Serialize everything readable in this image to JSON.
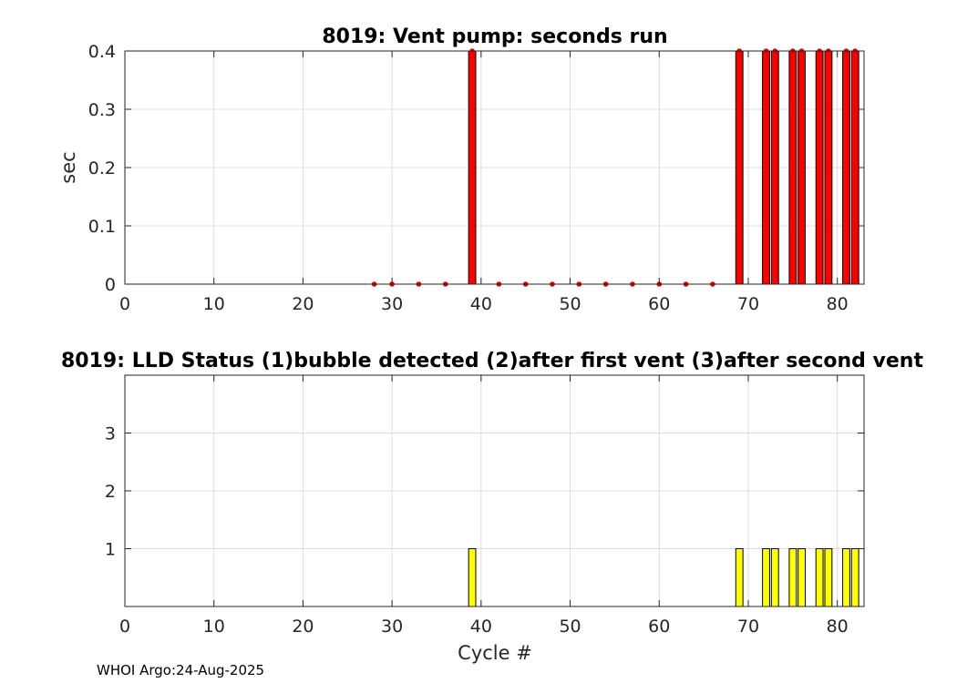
{
  "footer": "WHOI Argo:24-Aug-2025",
  "chart_data": [
    {
      "type": "bar",
      "title": "8019: Vent pump: seconds run",
      "xlabel": "",
      "ylabel": "sec",
      "xlim": [
        0,
        83
      ],
      "ylim": [
        0,
        0.4
      ],
      "xticks": [
        0,
        10,
        20,
        30,
        40,
        50,
        60,
        70,
        80
      ],
      "yticks": [
        0,
        0.1,
        0.2,
        0.3,
        0.4
      ],
      "xtick_labels": [
        "0",
        "10",
        "20",
        "30",
        "40",
        "50",
        "60",
        "70",
        "80"
      ],
      "ytick_labels": [
        "0",
        "0.1",
        "0.2",
        "0.3",
        "0.4"
      ],
      "grid": true,
      "bar_color": "#ff0000",
      "marker_color": "#e00000",
      "x": [
        28,
        30,
        33,
        36,
        39,
        42,
        45,
        48,
        51,
        54,
        57,
        60,
        63,
        66,
        69,
        72,
        73,
        75,
        76,
        78,
        79,
        81,
        82
      ],
      "values": [
        0,
        0,
        0,
        0,
        0.4,
        0,
        0,
        0,
        0,
        0,
        0,
        0,
        0,
        0,
        0.4,
        0.4,
        0.4,
        0.4,
        0.4,
        0.4,
        0.4,
        0.4,
        0.4
      ]
    },
    {
      "type": "bar",
      "title": "8019: LLD Status   (1)bubble detected   (2)after first vent  (3)after second vent",
      "xlabel": "Cycle #",
      "ylabel": "",
      "xlim": [
        0,
        83
      ],
      "ylim": [
        0,
        4
      ],
      "xticks": [
        0,
        10,
        20,
        30,
        40,
        50,
        60,
        70,
        80
      ],
      "yticks": [
        1,
        2,
        3
      ],
      "xtick_labels": [
        "0",
        "10",
        "20",
        "30",
        "40",
        "50",
        "60",
        "70",
        "80"
      ],
      "ytick_labels": [
        "1",
        "2",
        "3"
      ],
      "grid": true,
      "bar_color": "#ffff00",
      "x": [
        39,
        69,
        72,
        73,
        75,
        76,
        78,
        79,
        81,
        82
      ],
      "values": [
        1,
        1,
        1,
        1,
        1,
        1,
        1,
        1,
        1,
        1
      ]
    }
  ]
}
